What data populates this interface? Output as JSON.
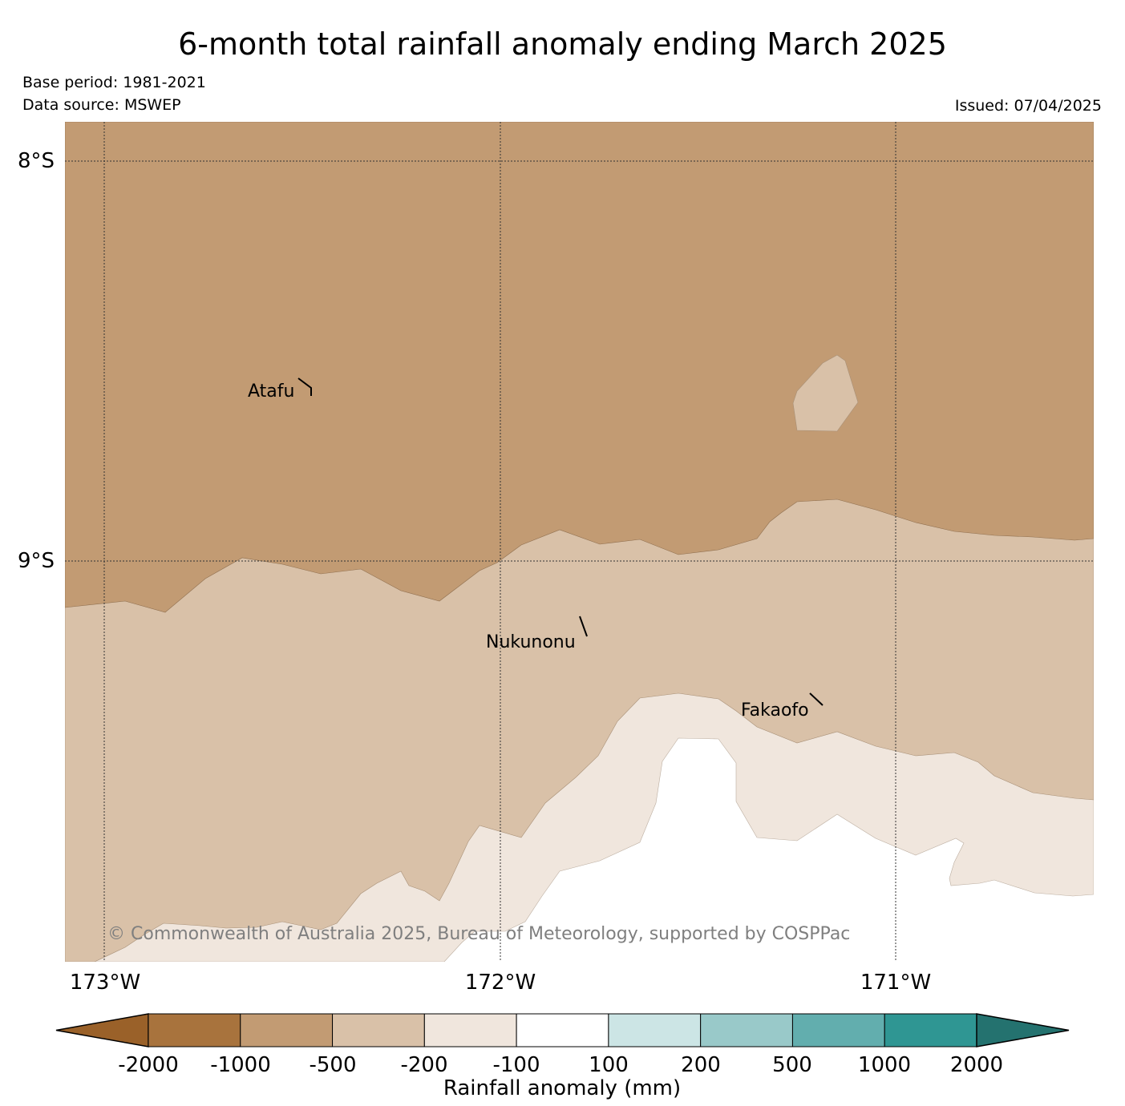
{
  "title": "6-month total rainfall anomaly ending March 2025",
  "base_period": "Base period: 1981-2021",
  "data_source": "Data source: MSWEP",
  "issued": "Issued: 07/04/2025",
  "copyright": "© Commonwealth of Australia 2025, Bureau of Meteorology, supported by COSPPac",
  "map": {
    "lat_ticks": [
      "8°S",
      "9°S"
    ],
    "lon_ticks": [
      "173°W",
      "172°W",
      "171°W"
    ],
    "places": [
      "Atafu",
      "Nukunonu",
      "Fakaofo"
    ]
  },
  "legend": {
    "title": "Rainfall anomaly (mm)",
    "labels": [
      "-2000",
      "-1000",
      "-500",
      "-200",
      "-100",
      "100",
      "200",
      "500",
      "1000",
      "2000"
    ],
    "colors": [
      "#9a6129",
      "#a8733d",
      "#c29b73",
      "#d9c1a8",
      "#f0e6dd",
      "#ffffff",
      "#cce5e5",
      "#99c9c9",
      "#62aeae",
      "#2f9693",
      "#24726f"
    ]
  }
}
